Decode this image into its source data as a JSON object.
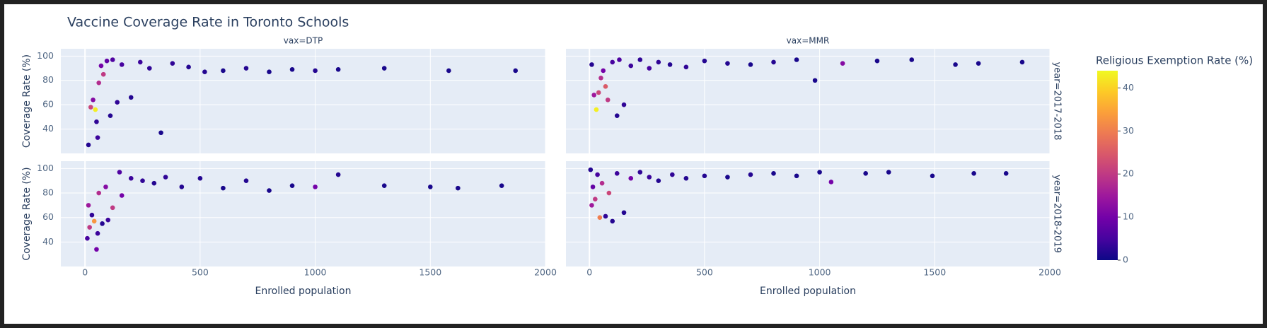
{
  "title": "Vaccine Coverage Rate in Toronto Schools",
  "colorbar": {
    "title": "Religious Exemption Rate (%)",
    "lim": [
      0,
      44
    ],
    "ticks": [
      0,
      10,
      20,
      30,
      40
    ],
    "colorscale": [
      "#0d0887",
      "#46039f",
      "#7201a8",
      "#9c179e",
      "#bd3786",
      "#d8576b",
      "#ed7953",
      "#fb9f3a",
      "#fdca26",
      "#f0f921"
    ]
  },
  "chart_data": [
    {
      "type": "scatter",
      "column_label": "vax=DTP",
      "y_label": "Coverage Rate (%)",
      "xlim": [
        -105,
        2000
      ],
      "ylim": [
        20,
        106
      ],
      "yticks": [
        40,
        60,
        80,
        100
      ],
      "grid": true,
      "x": [
        15,
        25,
        35,
        45,
        50,
        55,
        60,
        70,
        80,
        95,
        110,
        120,
        140,
        160,
        200,
        240,
        280,
        330,
        380,
        450,
        520,
        600,
        700,
        800,
        900,
        1000,
        1100,
        1300,
        1580,
        1870
      ],
      "y": [
        27,
        58,
        64,
        56,
        46,
        33,
        78,
        92,
        85,
        96,
        51,
        97,
        62,
        93,
        66,
        95,
        90,
        37,
        94,
        91,
        87,
        88,
        90,
        87,
        89,
        88,
        89,
        90,
        88,
        88
      ],
      "color_values": [
        2,
        22,
        12,
        43,
        3,
        4,
        18,
        10,
        20,
        8,
        2,
        6,
        3,
        5,
        2,
        4,
        3,
        1,
        3,
        2,
        2,
        1,
        2,
        1,
        1,
        2,
        1,
        1,
        1,
        1
      ]
    },
    {
      "type": "scatter",
      "column_label": "vax=MMR",
      "row_label": "year=2017-2018",
      "xlim": [
        -102,
        2000
      ],
      "ylim": [
        20,
        106
      ],
      "grid": true,
      "x": [
        10,
        20,
        30,
        40,
        50,
        60,
        70,
        80,
        100,
        120,
        130,
        150,
        180,
        220,
        260,
        300,
        350,
        420,
        500,
        600,
        700,
        800,
        900,
        980,
        1100,
        1250,
        1400,
        1590,
        1690,
        1880
      ],
      "y": [
        93,
        68,
        56,
        70,
        82,
        88,
        75,
        64,
        95,
        51,
        97,
        60,
        92,
        97,
        90,
        95,
        93,
        91,
        96,
        94,
        93,
        95,
        97,
        80,
        94,
        96,
        97,
        93,
        94,
        95
      ],
      "color_values": [
        2,
        15,
        43,
        22,
        18,
        10,
        25,
        20,
        5,
        2,
        6,
        3,
        4,
        3,
        5,
        3,
        2,
        3,
        2,
        2,
        1,
        2,
        1,
        1,
        12,
        1,
        1,
        1,
        1,
        1
      ]
    },
    {
      "type": "scatter",
      "y_label": "Coverage Rate (%)",
      "x_label": "Enrolled population",
      "xlim": [
        -105,
        2000
      ],
      "ylim": [
        20,
        106
      ],
      "xticks": [
        0,
        500,
        1000,
        1500,
        2000
      ],
      "yticks": [
        40,
        60,
        80,
        100
      ],
      "grid": true,
      "x": [
        10,
        15,
        20,
        30,
        40,
        50,
        55,
        60,
        75,
        90,
        100,
        120,
        150,
        160,
        200,
        250,
        300,
        350,
        420,
        500,
        600,
        700,
        800,
        900,
        1000,
        1100,
        1300,
        1500,
        1620,
        1810
      ],
      "y": [
        43,
        70,
        52,
        62,
        57,
        34,
        47,
        80,
        55,
        85,
        58,
        68,
        97,
        78,
        92,
        90,
        88,
        93,
        85,
        92,
        84,
        90,
        82,
        86,
        85,
        95,
        86,
        85,
        84,
        86
      ],
      "color_values": [
        5,
        15,
        20,
        3,
        33,
        10,
        4,
        18,
        2,
        12,
        4,
        20,
        6,
        10,
        4,
        3,
        2,
        3,
        2,
        2,
        1,
        2,
        1,
        1,
        10,
        2,
        1,
        1,
        1,
        1
      ]
    },
    {
      "type": "scatter",
      "row_label": "year=2018-2019",
      "x_label": "Enrolled population",
      "xlim": [
        -102,
        2000
      ],
      "ylim": [
        20,
        106
      ],
      "xticks": [
        0,
        500,
        1000,
        1500,
        2000
      ],
      "grid": true,
      "x": [
        5,
        10,
        15,
        25,
        35,
        45,
        55,
        70,
        85,
        100,
        120,
        150,
        180,
        220,
        260,
        300,
        360,
        420,
        500,
        600,
        700,
        800,
        900,
        1000,
        1050,
        1200,
        1300,
        1490,
        1670,
        1810
      ],
      "y": [
        99,
        70,
        85,
        75,
        95,
        60,
        88,
        61,
        80,
        57,
        96,
        64,
        92,
        97,
        93,
        90,
        95,
        92,
        94,
        93,
        95,
        96,
        94,
        97,
        89,
        96,
        97,
        94,
        96,
        96
      ],
      "color_values": [
        2,
        15,
        8,
        20,
        5,
        30,
        18,
        3,
        22,
        2,
        4,
        2,
        10,
        3,
        4,
        2,
        3,
        2,
        2,
        1,
        2,
        1,
        1,
        1,
        10,
        1,
        1,
        1,
        1,
        1
      ]
    }
  ]
}
